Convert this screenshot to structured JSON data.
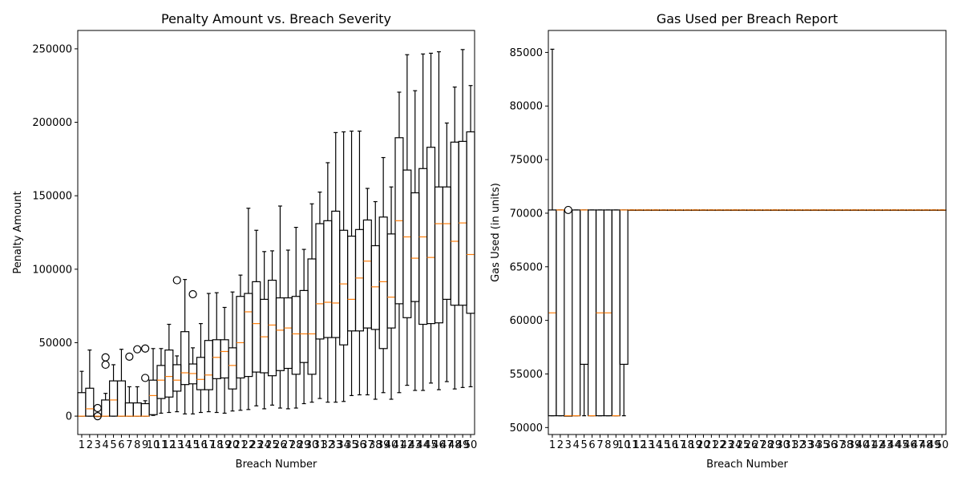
{
  "chart_data": [
    {
      "type": "boxplot",
      "title": "Penalty Amount vs. Breach Severity",
      "xlabel": "Breach Number",
      "ylabel": "Penalty Amount",
      "ylim": [
        -12500,
        262500
      ],
      "yticks": [
        0,
        50000,
        100000,
        150000,
        200000,
        250000
      ],
      "categories": [
        "1",
        "2",
        "3",
        "4",
        "5",
        "6",
        "7",
        "8",
        "9",
        "10",
        "11",
        "12",
        "13",
        "14",
        "15",
        "16",
        "17",
        "18",
        "19",
        "20",
        "21",
        "22",
        "23",
        "24",
        "25",
        "26",
        "27",
        "28",
        "29",
        "30",
        "31",
        "32",
        "33",
        "34",
        "35",
        "36",
        "37",
        "38",
        "39",
        "40",
        "41",
        "42",
        "43",
        "44",
        "45",
        "46",
        "47",
        "48",
        "49",
        "50"
      ],
      "boxes": [
        {
          "wl": 0,
          "q1": 0,
          "med": 0,
          "q3": 16000,
          "wh": 30500,
          "fliers": []
        },
        {
          "wl": 0,
          "q1": 0,
          "med": 5000,
          "q3": 19000,
          "wh": 45000,
          "fliers": []
        },
        {
          "wl": 0,
          "q1": 0,
          "med": 0,
          "q3": 0,
          "wh": 0,
          "fliers": [
            5500,
            0
          ]
        },
        {
          "wl": 0,
          "q1": 0,
          "med": 0,
          "q3": 11000,
          "wh": 15500,
          "fliers": [
            40000,
            35000
          ]
        },
        {
          "wl": 0,
          "q1": 0,
          "med": 11000,
          "q3": 24000,
          "wh": 35000,
          "fliers": []
        },
        {
          "wl": 0,
          "q1": 0,
          "med": 0,
          "q3": 24000,
          "wh": 45500,
          "fliers": []
        },
        {
          "wl": 0,
          "q1": 0,
          "med": 0,
          "q3": 9000,
          "wh": 20000,
          "fliers": [
            40500
          ]
        },
        {
          "wl": 0,
          "q1": 0,
          "med": 0,
          "q3": 9000,
          "wh": 20000,
          "fliers": [
            45500
          ]
        },
        {
          "wl": 0,
          "q1": 0,
          "med": 0,
          "q3": 8500,
          "wh": 10500,
          "fliers": [
            46000,
            26000
          ]
        },
        {
          "wl": 500,
          "q1": 1000,
          "med": 14000,
          "q3": 24500,
          "wh": 46000,
          "fliers": []
        },
        {
          "wl": 2000,
          "q1": 12000,
          "med": 24500,
          "q3": 34500,
          "wh": 46000,
          "fliers": []
        },
        {
          "wl": 2500,
          "q1": 13000,
          "med": 27000,
          "q3": 45000,
          "wh": 62500,
          "fliers": []
        },
        {
          "wl": 3000,
          "q1": 17000,
          "med": 24500,
          "q3": 35000,
          "wh": 41000,
          "fliers": [
            92500
          ]
        },
        {
          "wl": 1500,
          "q1": 21500,
          "med": 29500,
          "q3": 57500,
          "wh": 93000,
          "fliers": []
        },
        {
          "wl": 1500,
          "q1": 22000,
          "med": 29000,
          "q3": 35500,
          "wh": 46500,
          "fliers": [
            83000
          ]
        },
        {
          "wl": 2500,
          "q1": 18000,
          "med": 25000,
          "q3": 40000,
          "wh": 63000,
          "fliers": []
        },
        {
          "wl": 3000,
          "q1": 18000,
          "med": 28000,
          "q3": 51500,
          "wh": 83500,
          "fliers": []
        },
        {
          "wl": 2500,
          "q1": 25500,
          "med": 40000,
          "q3": 52000,
          "wh": 84000,
          "fliers": []
        },
        {
          "wl": 2000,
          "q1": 26000,
          "med": 44000,
          "q3": 52000,
          "wh": 74000,
          "fliers": []
        },
        {
          "wl": 3500,
          "q1": 18500,
          "med": 34500,
          "q3": 46500,
          "wh": 84500,
          "fliers": []
        },
        {
          "wl": 4000,
          "q1": 26000,
          "med": 50000,
          "q3": 81500,
          "wh": 96000,
          "fliers": []
        },
        {
          "wl": 4500,
          "q1": 27000,
          "med": 71000,
          "q3": 83500,
          "wh": 141500,
          "fliers": []
        },
        {
          "wl": 7000,
          "q1": 30000,
          "med": 63000,
          "q3": 91500,
          "wh": 126500,
          "fliers": []
        },
        {
          "wl": 5000,
          "q1": 29500,
          "med": 54000,
          "q3": 79500,
          "wh": 112000,
          "fliers": []
        },
        {
          "wl": 7500,
          "q1": 27500,
          "med": 62000,
          "q3": 92500,
          "wh": 112500,
          "fliers": []
        },
        {
          "wl": 5500,
          "q1": 31000,
          "med": 58500,
          "q3": 80500,
          "wh": 143000,
          "fliers": []
        },
        {
          "wl": 5000,
          "q1": 32500,
          "med": 60000,
          "q3": 80500,
          "wh": 113000,
          "fliers": []
        },
        {
          "wl": 5500,
          "q1": 28500,
          "med": 56000,
          "q3": 81500,
          "wh": 128500,
          "fliers": []
        },
        {
          "wl": 8500,
          "q1": 36500,
          "med": 56000,
          "q3": 85500,
          "wh": 113500,
          "fliers": []
        },
        {
          "wl": 9500,
          "q1": 28500,
          "med": 56000,
          "q3": 107000,
          "wh": 144500,
          "fliers": []
        },
        {
          "wl": 12000,
          "q1": 52500,
          "med": 76500,
          "q3": 131000,
          "wh": 152500,
          "fliers": []
        },
        {
          "wl": 9500,
          "q1": 53500,
          "med": 77500,
          "q3": 133000,
          "wh": 172500,
          "fliers": []
        },
        {
          "wl": 9500,
          "q1": 53500,
          "med": 77000,
          "q3": 139500,
          "wh": 193000,
          "fliers": []
        },
        {
          "wl": 10000,
          "q1": 48500,
          "med": 90000,
          "q3": 126500,
          "wh": 193500,
          "fliers": []
        },
        {
          "wl": 14000,
          "q1": 58000,
          "med": 79500,
          "q3": 122500,
          "wh": 194000,
          "fliers": []
        },
        {
          "wl": 14500,
          "q1": 58000,
          "med": 94000,
          "q3": 127000,
          "wh": 194000,
          "fliers": []
        },
        {
          "wl": 14500,
          "q1": 60000,
          "med": 105500,
          "q3": 133500,
          "wh": 155000,
          "fliers": []
        },
        {
          "wl": 11500,
          "q1": 59000,
          "med": 88000,
          "q3": 116000,
          "wh": 146000,
          "fliers": []
        },
        {
          "wl": 16000,
          "q1": 46000,
          "med": 91500,
          "q3": 135500,
          "wh": 176000,
          "fliers": []
        },
        {
          "wl": 11500,
          "q1": 60000,
          "med": 81000,
          "q3": 124000,
          "wh": 156000,
          "fliers": []
        },
        {
          "wl": 16000,
          "q1": 76500,
          "med": 133000,
          "q3": 189500,
          "wh": 220500,
          "fliers": []
        },
        {
          "wl": 21000,
          "q1": 67000,
          "med": 122000,
          "q3": 167500,
          "wh": 246000,
          "fliers": []
        },
        {
          "wl": 17500,
          "q1": 78000,
          "med": 107500,
          "q3": 152000,
          "wh": 221500,
          "fliers": []
        },
        {
          "wl": 17500,
          "q1": 62500,
          "med": 122000,
          "q3": 168500,
          "wh": 246500,
          "fliers": []
        },
        {
          "wl": 22500,
          "q1": 63000,
          "med": 108000,
          "q3": 183000,
          "wh": 247000,
          "fliers": []
        },
        {
          "wl": 18000,
          "q1": 63500,
          "med": 131000,
          "q3": 156000,
          "wh": 248000,
          "fliers": []
        },
        {
          "wl": 23500,
          "q1": 79500,
          "med": 131000,
          "q3": 156000,
          "wh": 199500,
          "fliers": []
        },
        {
          "wl": 18500,
          "q1": 75500,
          "med": 119000,
          "q3": 186500,
          "wh": 224000,
          "fliers": []
        },
        {
          "wl": 19500,
          "q1": 75500,
          "med": 131500,
          "q3": 187000,
          "wh": 249500,
          "fliers": []
        },
        {
          "wl": 20000,
          "q1": 70000,
          "med": 110000,
          "q3": 193500,
          "wh": 225000,
          "fliers": []
        }
      ]
    },
    {
      "type": "boxplot",
      "title": "Gas Used per Breach Report",
      "xlabel": "Breach Number",
      "ylabel": "Gas Used (in units)",
      "ylim": [
        49350,
        87050
      ],
      "yticks": [
        50000,
        55000,
        60000,
        65000,
        70000,
        75000,
        80000,
        85000
      ],
      "categories": [
        "1",
        "2",
        "3",
        "4",
        "5",
        "6",
        "7",
        "8",
        "9",
        "10",
        "11",
        "12",
        "13",
        "14",
        "15",
        "16",
        "17",
        "18",
        "19",
        "20",
        "21",
        "22",
        "23",
        "24",
        "25",
        "26",
        "27",
        "28",
        "29",
        "30",
        "31",
        "32",
        "33",
        "34",
        "35",
        "36",
        "37",
        "38",
        "39",
        "40",
        "41",
        "42",
        "43",
        "44",
        "45",
        "46",
        "47",
        "48",
        "49",
        "50"
      ],
      "boxes": [
        {
          "wl": 51100,
          "q1": 51100,
          "med": 60700,
          "q3": 70300,
          "wh": 85300,
          "fliers": []
        },
        {
          "wl": 51100,
          "q1": 51100,
          "med": 70300,
          "q3": 70300,
          "wh": 70300,
          "fliers": []
        },
        {
          "wl": 51100,
          "q1": 51100,
          "med": 51100,
          "q3": 51100,
          "wh": 51100,
          "fliers": [
            70300
          ]
        },
        {
          "wl": 51100,
          "q1": 51100,
          "med": 51100,
          "q3": 70300,
          "wh": 70300,
          "fliers": []
        },
        {
          "wl": 51100,
          "q1": 55900,
          "med": 70300,
          "q3": 70300,
          "wh": 70300,
          "fliers": []
        },
        {
          "wl": 51100,
          "q1": 51100,
          "med": 51100,
          "q3": 70300,
          "wh": 70300,
          "fliers": []
        },
        {
          "wl": 51100,
          "q1": 51100,
          "med": 60700,
          "q3": 70300,
          "wh": 70300,
          "fliers": []
        },
        {
          "wl": 51100,
          "q1": 51100,
          "med": 60700,
          "q3": 70300,
          "wh": 70300,
          "fliers": []
        },
        {
          "wl": 51100,
          "q1": 51100,
          "med": 51100,
          "q3": 70300,
          "wh": 70300,
          "fliers": []
        },
        {
          "wl": 51100,
          "q1": 55900,
          "med": 70300,
          "q3": 70300,
          "wh": 70300,
          "fliers": []
        },
        {
          "wl": 70300,
          "q1": 70300,
          "med": 70300,
          "q3": 70300,
          "wh": 70300,
          "fliers": []
        },
        {
          "wl": 70300,
          "q1": 70300,
          "med": 70300,
          "q3": 70300,
          "wh": 70300,
          "fliers": []
        },
        {
          "wl": 70300,
          "q1": 70300,
          "med": 70300,
          "q3": 70300,
          "wh": 70300,
          "fliers": []
        },
        {
          "wl": 70300,
          "q1": 70300,
          "med": 70300,
          "q3": 70300,
          "wh": 70300,
          "fliers": []
        },
        {
          "wl": 70300,
          "q1": 70300,
          "med": 70300,
          "q3": 70300,
          "wh": 70300,
          "fliers": []
        },
        {
          "wl": 70300,
          "q1": 70300,
          "med": 70300,
          "q3": 70300,
          "wh": 70300,
          "fliers": []
        },
        {
          "wl": 70300,
          "q1": 70300,
          "med": 70300,
          "q3": 70300,
          "wh": 70300,
          "fliers": []
        },
        {
          "wl": 70300,
          "q1": 70300,
          "med": 70300,
          "q3": 70300,
          "wh": 70300,
          "fliers": []
        },
        {
          "wl": 70300,
          "q1": 70300,
          "med": 70300,
          "q3": 70300,
          "wh": 70300,
          "fliers": []
        },
        {
          "wl": 70300,
          "q1": 70300,
          "med": 70300,
          "q3": 70300,
          "wh": 70300,
          "fliers": []
        },
        {
          "wl": 70300,
          "q1": 70300,
          "med": 70300,
          "q3": 70300,
          "wh": 70300,
          "fliers": []
        },
        {
          "wl": 70300,
          "q1": 70300,
          "med": 70300,
          "q3": 70300,
          "wh": 70300,
          "fliers": []
        },
        {
          "wl": 70300,
          "q1": 70300,
          "med": 70300,
          "q3": 70300,
          "wh": 70300,
          "fliers": []
        },
        {
          "wl": 70300,
          "q1": 70300,
          "med": 70300,
          "q3": 70300,
          "wh": 70300,
          "fliers": []
        },
        {
          "wl": 70300,
          "q1": 70300,
          "med": 70300,
          "q3": 70300,
          "wh": 70300,
          "fliers": []
        },
        {
          "wl": 70300,
          "q1": 70300,
          "med": 70300,
          "q3": 70300,
          "wh": 70300,
          "fliers": []
        },
        {
          "wl": 70300,
          "q1": 70300,
          "med": 70300,
          "q3": 70300,
          "wh": 70300,
          "fliers": []
        },
        {
          "wl": 70300,
          "q1": 70300,
          "med": 70300,
          "q3": 70300,
          "wh": 70300,
          "fliers": []
        },
        {
          "wl": 70300,
          "q1": 70300,
          "med": 70300,
          "q3": 70300,
          "wh": 70300,
          "fliers": []
        },
        {
          "wl": 70300,
          "q1": 70300,
          "med": 70300,
          "q3": 70300,
          "wh": 70300,
          "fliers": []
        },
        {
          "wl": 70300,
          "q1": 70300,
          "med": 70300,
          "q3": 70300,
          "wh": 70300,
          "fliers": []
        },
        {
          "wl": 70300,
          "q1": 70300,
          "med": 70300,
          "q3": 70300,
          "wh": 70300,
          "fliers": []
        },
        {
          "wl": 70300,
          "q1": 70300,
          "med": 70300,
          "q3": 70300,
          "wh": 70300,
          "fliers": []
        },
        {
          "wl": 70300,
          "q1": 70300,
          "med": 70300,
          "q3": 70300,
          "wh": 70300,
          "fliers": []
        },
        {
          "wl": 70300,
          "q1": 70300,
          "med": 70300,
          "q3": 70300,
          "wh": 70300,
          "fliers": []
        },
        {
          "wl": 70300,
          "q1": 70300,
          "med": 70300,
          "q3": 70300,
          "wh": 70300,
          "fliers": []
        },
        {
          "wl": 70300,
          "q1": 70300,
          "med": 70300,
          "q3": 70300,
          "wh": 70300,
          "fliers": []
        },
        {
          "wl": 70300,
          "q1": 70300,
          "med": 70300,
          "q3": 70300,
          "wh": 70300,
          "fliers": []
        },
        {
          "wl": 70300,
          "q1": 70300,
          "med": 70300,
          "q3": 70300,
          "wh": 70300,
          "fliers": []
        },
        {
          "wl": 70300,
          "q1": 70300,
          "med": 70300,
          "q3": 70300,
          "wh": 70300,
          "fliers": []
        },
        {
          "wl": 70300,
          "q1": 70300,
          "med": 70300,
          "q3": 70300,
          "wh": 70300,
          "fliers": []
        },
        {
          "wl": 70300,
          "q1": 70300,
          "med": 70300,
          "q3": 70300,
          "wh": 70300,
          "fliers": []
        },
        {
          "wl": 70300,
          "q1": 70300,
          "med": 70300,
          "q3": 70300,
          "wh": 70300,
          "fliers": []
        },
        {
          "wl": 70300,
          "q1": 70300,
          "med": 70300,
          "q3": 70300,
          "wh": 70300,
          "fliers": []
        },
        {
          "wl": 70300,
          "q1": 70300,
          "med": 70300,
          "q3": 70300,
          "wh": 70300,
          "fliers": []
        },
        {
          "wl": 70300,
          "q1": 70300,
          "med": 70300,
          "q3": 70300,
          "wh": 70300,
          "fliers": []
        },
        {
          "wl": 70300,
          "q1": 70300,
          "med": 70300,
          "q3": 70300,
          "wh": 70300,
          "fliers": []
        },
        {
          "wl": 70300,
          "q1": 70300,
          "med": 70300,
          "q3": 70300,
          "wh": 70300,
          "fliers": []
        },
        {
          "wl": 70300,
          "q1": 70300,
          "med": 70300,
          "q3": 70300,
          "wh": 70300,
          "fliers": []
        },
        {
          "wl": 70300,
          "q1": 70300,
          "med": 70300,
          "q3": 70300,
          "wh": 70300,
          "fliers": []
        }
      ]
    }
  ],
  "colors": {
    "box": "#000000",
    "median": "#ff7f0e",
    "background": "#ffffff"
  }
}
